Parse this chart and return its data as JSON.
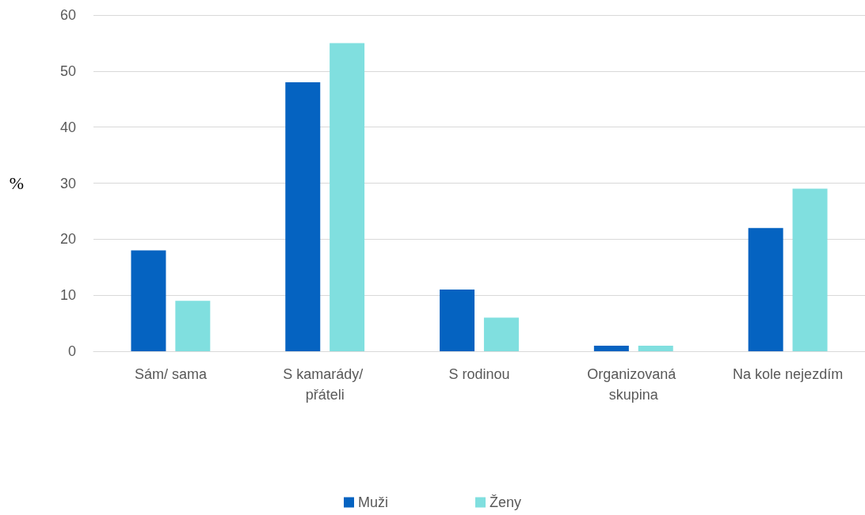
{
  "chart_data": {
    "type": "bar",
    "ylabel": "%",
    "categories": [
      "Sám/ sama",
      "S kamarády/ přáteli",
      "S rodinou",
      "Organizovaná skupina",
      "Na kole nejezdím"
    ],
    "series": [
      {
        "name": "Muži",
        "color": "#0563c1",
        "values": [
          18,
          48,
          11,
          1,
          22
        ]
      },
      {
        "name": "Ženy",
        "color": "#80dfdf",
        "values": [
          9,
          55,
          6,
          1,
          29
        ]
      }
    ],
    "ylim": [
      0,
      60
    ],
    "yticks": [
      0,
      10,
      20,
      30,
      40,
      50,
      60
    ],
    "grid": "y",
    "legend": "bottom"
  }
}
